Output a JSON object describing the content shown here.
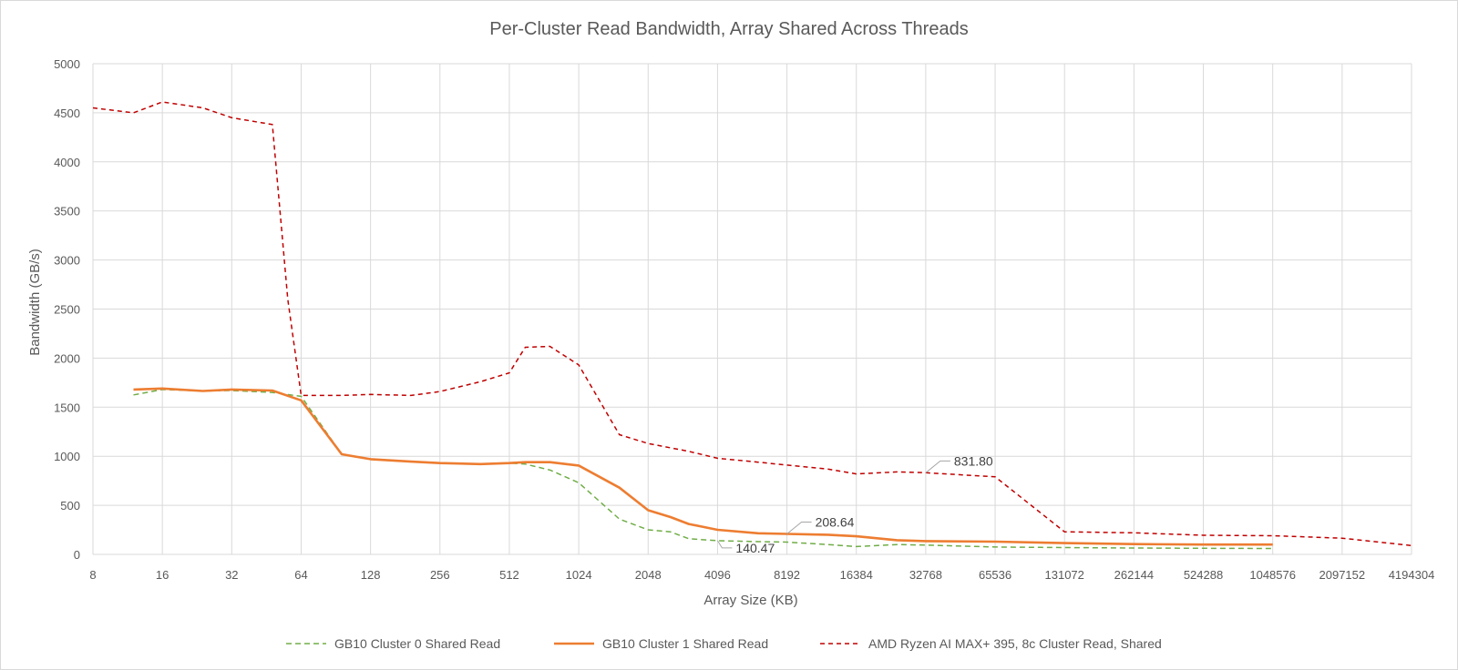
{
  "chart_data": {
    "type": "line",
    "title": "Per-Cluster Read Bandwidth, Array Shared Across Threads",
    "xlabel": "Array Size (KB)",
    "ylabel": "Bandwidth (GB/s)",
    "x_scale": "log2",
    "xlim": [
      8,
      4194304
    ],
    "ylim": [
      0,
      5000
    ],
    "x_ticks": [
      "8",
      "16",
      "32",
      "64",
      "128",
      "256",
      "512",
      "1024",
      "2048",
      "4096",
      "8192",
      "16384",
      "32768",
      "65536",
      "131072",
      "262144",
      "524288",
      "1048576",
      "2097152",
      "4194304"
    ],
    "y_ticks": [
      "0",
      "500",
      "1000",
      "1500",
      "2000",
      "2500",
      "3000",
      "3500",
      "4000",
      "4500",
      "5000"
    ],
    "grid": true,
    "legend_position": "bottom",
    "series": [
      {
        "name": "GB10 Cluster 0 Shared Read",
        "color": "#70ad47",
        "dash": "dashed",
        "x": [
          12,
          16,
          24,
          32,
          48,
          64,
          96,
          128,
          192,
          256,
          384,
          512,
          600,
          768,
          1024,
          1536,
          2048,
          2560,
          3072,
          4096,
          6144,
          8192,
          12288,
          16384,
          24576,
          32768,
          65536,
          131072,
          262144,
          524288,
          1048576
        ],
        "values": [
          1625,
          1680,
          1665,
          1670,
          1650,
          1610,
          1020,
          970,
          945,
          930,
          920,
          930,
          920,
          860,
          730,
          360,
          250,
          230,
          160,
          140.47,
          130,
          125,
          100,
          80,
          100,
          95,
          75,
          70,
          65,
          62,
          60
        ]
      },
      {
        "name": "GB10 Cluster 1 Shared Read",
        "color": "#ed7d31",
        "dash": "solid",
        "x": [
          12,
          16,
          24,
          32,
          48,
          64,
          96,
          128,
          192,
          256,
          384,
          512,
          600,
          768,
          1024,
          1536,
          2048,
          2560,
          3072,
          4096,
          6144,
          8192,
          12288,
          16384,
          24576,
          32768,
          65536,
          131072,
          262144,
          524288,
          1048576
        ],
        "values": [
          1680,
          1690,
          1665,
          1680,
          1670,
          1570,
          1020,
          970,
          945,
          930,
          920,
          930,
          940,
          940,
          905,
          680,
          450,
          380,
          310,
          250,
          215,
          208.64,
          200,
          185,
          145,
          135,
          130,
          115,
          105,
          100,
          100
        ]
      },
      {
        "name": "AMD Ryzen AI MAX+ 395, 8c Cluster Read, Shared",
        "color": "#c00000",
        "dash": "dashed",
        "x": [
          8,
          12,
          16,
          24,
          32,
          48,
          56,
          64,
          96,
          128,
          192,
          256,
          384,
          512,
          600,
          768,
          1024,
          1536,
          2048,
          3072,
          4096,
          6144,
          8192,
          12288,
          16384,
          24576,
          32768,
          65536,
          131072,
          262144,
          524288,
          1048576,
          2097152,
          4194304
        ],
        "values": [
          4550,
          4500,
          4610,
          4550,
          4450,
          4380,
          2600,
          1620,
          1620,
          1630,
          1620,
          1660,
          1760,
          1850,
          2110,
          2120,
          1930,
          1220,
          1130,
          1050,
          980,
          940,
          910,
          870,
          820,
          840,
          831.8,
          790,
          230,
          220,
          195,
          190,
          165,
          90
        ]
      }
    ],
    "annotations": [
      {
        "text": "831.80",
        "series": 2,
        "x": 32768,
        "y": 831.8
      },
      {
        "text": "208.64",
        "series": 1,
        "x": 8192,
        "y": 208.64
      },
      {
        "text": "140.47",
        "series": 0,
        "x": 4096,
        "y": 140.47
      }
    ]
  }
}
